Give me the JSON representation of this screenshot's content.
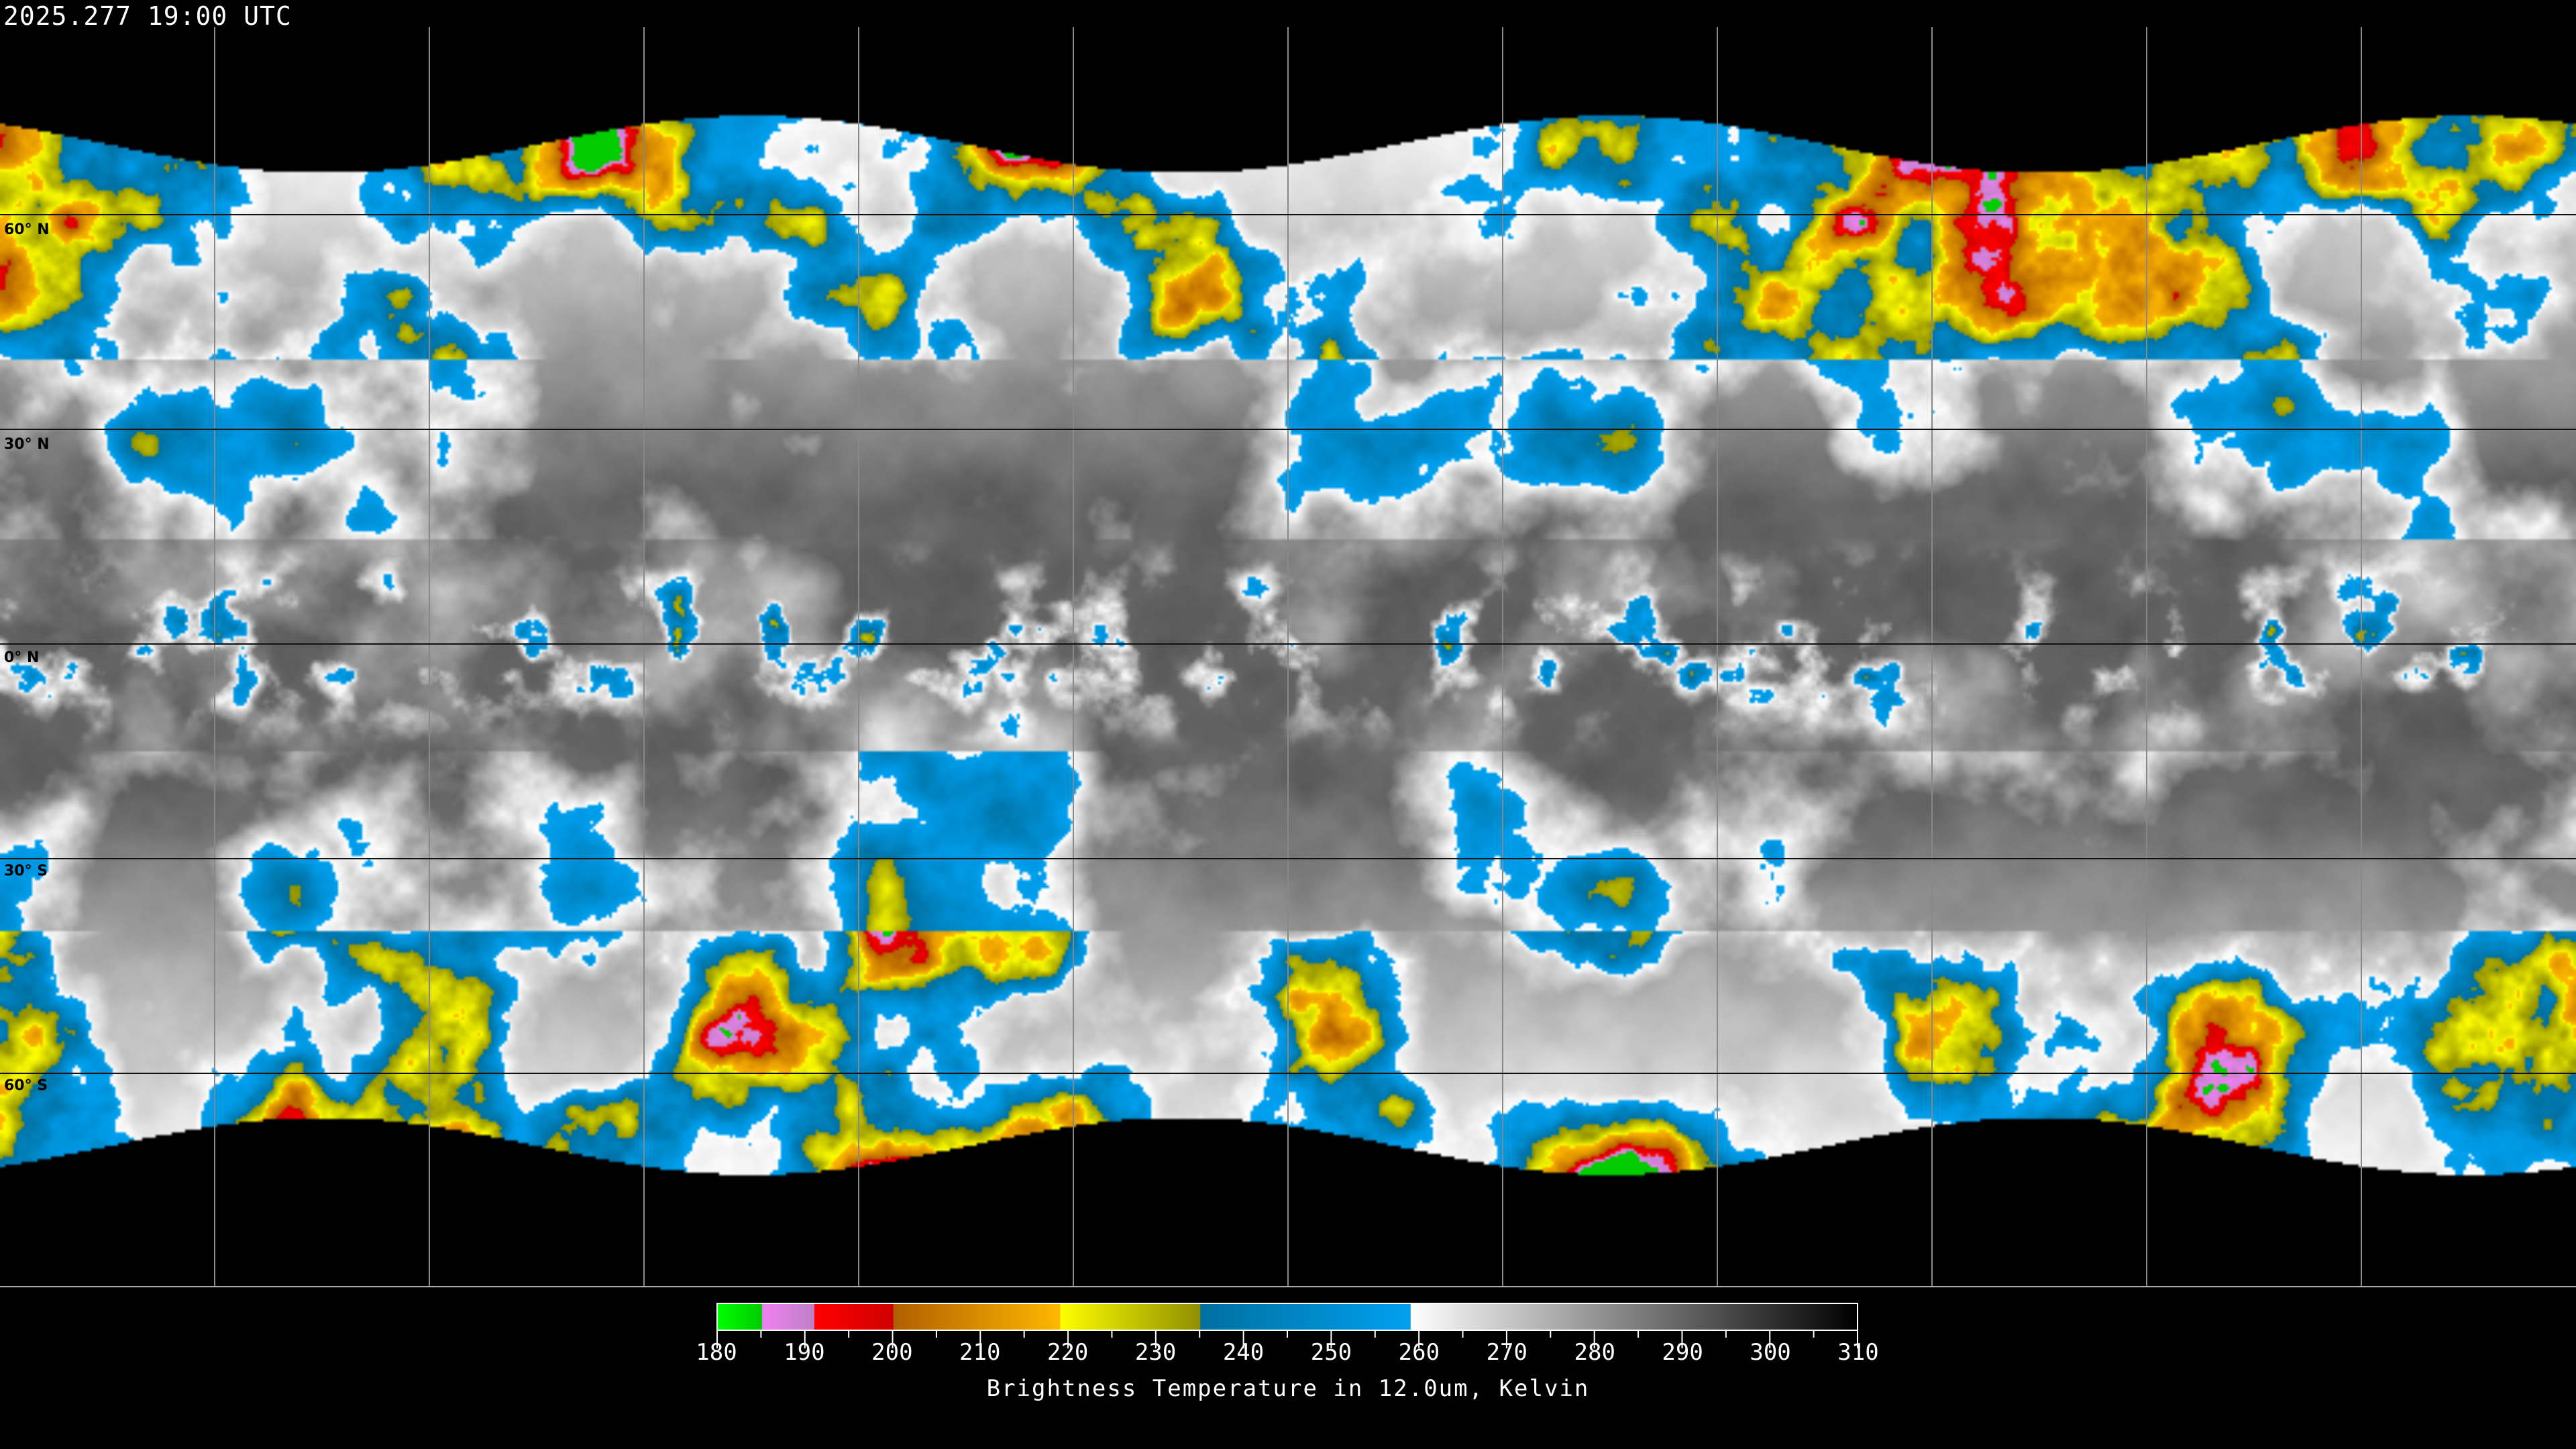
{
  "header": {
    "timestamp": "2025.277 19:00 UTC"
  },
  "map": {
    "projection": "equirectangular",
    "grid_spacing_deg": 30,
    "lat_labels": [
      "60° N",
      "30° N",
      "0° N",
      "30° S",
      "60° S"
    ],
    "lat_values": [
      60,
      30,
      0,
      -30,
      -60
    ],
    "coverage_lat_limit": 70
  },
  "colorbar": {
    "title": "Brightness Temperature in 12.0um, Kelvin",
    "min": 180,
    "max": 310,
    "tick_labels": [
      "180",
      "190",
      "200",
      "210",
      "220",
      "230",
      "240",
      "250",
      "260",
      "270",
      "280",
      "290",
      "300",
      "310"
    ],
    "segments": [
      {
        "from": 180,
        "to": 185,
        "c0": "#00ff00",
        "c1": "#00cc00"
      },
      {
        "from": 185,
        "to": 191,
        "c0": "#f080f0",
        "c1": "#c080c8"
      },
      {
        "from": 191,
        "to": 200,
        "c0": "#ff0000",
        "c1": "#d00000"
      },
      {
        "from": 200,
        "to": 219,
        "c0": "#b06000",
        "c1": "#ffb800"
      },
      {
        "from": 219,
        "to": 235,
        "c0": "#ffff00",
        "c1": "#909000"
      },
      {
        "from": 235,
        "to": 259,
        "c0": "#0070a0",
        "c1": "#00a0f0"
      },
      {
        "from": 259,
        "to": 310,
        "c0": "#ffffff",
        "c1": "#000000"
      }
    ]
  }
}
